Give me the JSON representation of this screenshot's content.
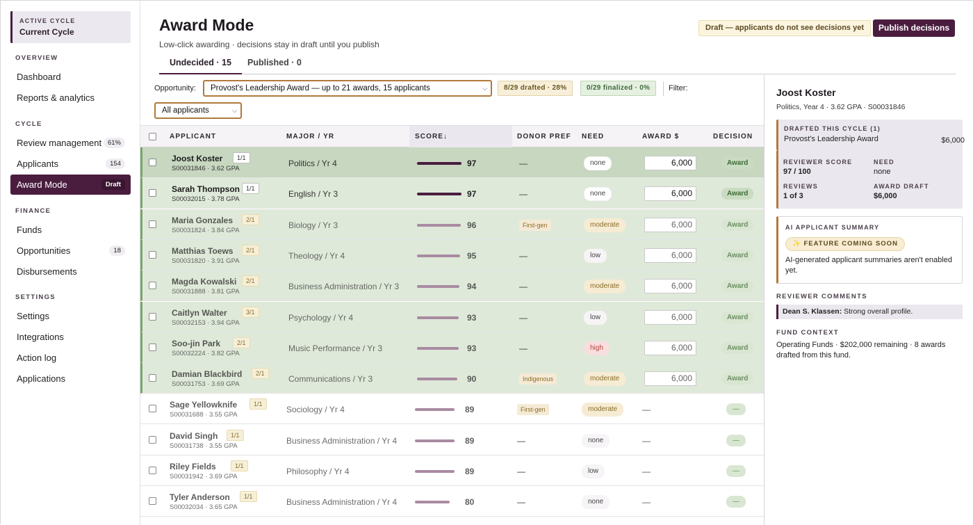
{
  "sidebar": {
    "cycle_kicker": "ACTIVE CYCLE",
    "cycle_name": "Current Cycle",
    "sections": {
      "overview": "OVERVIEW",
      "cycle": "CYCLE",
      "finance": "FINANCE",
      "settings": "SETTINGS"
    },
    "items": {
      "dashboard": "Dashboard",
      "reports": "Reports & analytics",
      "review": "Review management",
      "review_badge": "61%",
      "applicants": "Applicants",
      "applicants_badge": "154",
      "award_mode": "Award Mode",
      "award_mode_badge": "Draft",
      "funds": "Funds",
      "opportunities": "Opportunities",
      "opportunities_badge": "18",
      "disbursements": "Disbursements",
      "settings": "Settings",
      "integrations": "Integrations",
      "action_log": "Action log",
      "applications": "Applications"
    }
  },
  "header": {
    "title": "Award Mode",
    "subtitle": "Low-click awarding · decisions stay in draft until you publish",
    "draft_note": "Draft — applicants do not see decisions yet",
    "publish_label": "Publish decisions"
  },
  "tabs": {
    "undecided": "Undecided · 15",
    "published": "Published · 0"
  },
  "filters": {
    "opportunity_label": "Opportunity:",
    "opportunity_value": "Provost's Leadership Award — up to 21 awards, 15 applicants",
    "drafted_chip": "8/29 drafted · 28%",
    "finalized_chip": "0/29 finalized · 0%",
    "filter_label": "Filter:",
    "applicants_filter": "All applicants"
  },
  "columns": {
    "applicant": "APPLICANT",
    "major": "MAJOR / YR",
    "score": "SCORE↓",
    "donor": "DONOR PREF",
    "need": "NEED",
    "award": "AWARD $",
    "decision": "DECISION"
  },
  "rows": [
    {
      "name": "Joost Koster",
      "seq": "1/1",
      "sid": "S00031846 · 3.62 GPA",
      "major": "Politics / Yr 4",
      "score": "97",
      "score_value": 97,
      "donor": "—",
      "tag": "",
      "need": "none",
      "award": "6,000",
      "decision": "Award",
      "state": "selected"
    },
    {
      "name": "Sarah Thompson",
      "seq": "1/1",
      "sid": "S00032015 · 3.78 GPA",
      "major": "English / Yr 3",
      "score": "97",
      "score_value": 97,
      "donor": "—",
      "tag": "",
      "need": "none",
      "award": "6,000",
      "decision": "Award",
      "state": "drafted"
    },
    {
      "name": "Maria Gonzales",
      "seq": "2/1",
      "sid": "S00031824 · 3.84 GPA",
      "major": "Biology / Yr 3",
      "score": "96",
      "score_value": 96,
      "donor": "",
      "tag": "First-gen",
      "need": "moderate",
      "award": "6,000",
      "decision": "Award",
      "state": "drafted-fade"
    },
    {
      "name": "Matthias Toews",
      "seq": "2/1",
      "sid": "S00031820 · 3.91 GPA",
      "major": "Theology / Yr 4",
      "score": "95",
      "score_value": 95,
      "donor": "—",
      "tag": "",
      "need": "low",
      "award": "6,000",
      "decision": "Award",
      "state": "drafted-fade"
    },
    {
      "name": "Magda Kowalski",
      "seq": "2/1",
      "sid": "S00031888 · 3.81 GPA",
      "major": "Business Administration / Yr 3",
      "score": "94",
      "score_value": 94,
      "donor": "—",
      "tag": "",
      "need": "moderate",
      "award": "6,000",
      "decision": "Award",
      "state": "drafted-fade"
    },
    {
      "name": "Caitlyn Walter",
      "seq": "3/1",
      "sid": "S00032153 · 3.94 GPA",
      "major": "Psychology / Yr 4",
      "score": "93",
      "score_value": 93,
      "donor": "—",
      "tag": "",
      "need": "low",
      "award": "6,000",
      "decision": "Award",
      "state": "drafted-fade"
    },
    {
      "name": "Soo-jin Park",
      "seq": "2/1",
      "sid": "S00032224 · 3.82 GPA",
      "major": "Music Performance / Yr 3",
      "score": "93",
      "score_value": 93,
      "donor": "—",
      "tag": "",
      "need": "high",
      "award": "6,000",
      "decision": "Award",
      "state": "drafted-fade"
    },
    {
      "name": "Damian Blackbird",
      "seq": "2/1",
      "sid": "S00031753 · 3.69 GPA",
      "major": "Communications / Yr 3",
      "score": "90",
      "score_value": 90,
      "donor": "",
      "tag": "Indigenous",
      "need": "moderate",
      "award": "6,000",
      "decision": "Award",
      "state": "drafted-fade"
    },
    {
      "name": "Sage Yellowknife",
      "seq": "1/1",
      "sid": "S00031688 · 3.55 GPA",
      "major": "Sociology / Yr 4",
      "score": "89",
      "score_value": 89,
      "donor": "",
      "tag": "First-gen",
      "need": "moderate",
      "award": "—",
      "decision": "—",
      "state": "fade"
    },
    {
      "name": "David Singh",
      "seq": "1/1",
      "sid": "S00031738 · 3.55 GPA",
      "major": "Business Administration / Yr 4",
      "score": "89",
      "score_value": 89,
      "donor": "—",
      "tag": "",
      "need": "none",
      "award": "—",
      "decision": "—",
      "state": "fade"
    },
    {
      "name": "Riley Fields",
      "seq": "1/1",
      "sid": "S00031942 · 3.69 GPA",
      "major": "Philosophy / Yr 4",
      "score": "89",
      "score_value": 89,
      "donor": "—",
      "tag": "",
      "need": "low",
      "award": "—",
      "decision": "—",
      "state": "fade"
    },
    {
      "name": "Tyler Anderson",
      "seq": "1/1",
      "sid": "S00032034 · 3.65 GPA",
      "major": "Business Administration / Yr 4",
      "score": "80",
      "score_value": 80,
      "donor": "—",
      "tag": "",
      "need": "none",
      "award": "—",
      "decision": "—",
      "state": "fade"
    }
  ],
  "panel": {
    "name": "Joost Koster",
    "sub": "Politics, Year 4 · 3.62 GPA · S00031846",
    "drafted_kicker": "DRAFTED THIS CYCLE (1)",
    "drafted_award": "Provost's Leadership Award",
    "drafted_amount": "$6,000",
    "reviewer_score_k": "REVIEWER SCORE",
    "reviewer_score_v": "97 / 100",
    "need_k": "NEED",
    "need_v": "none",
    "reviews_k": "REVIEWS",
    "reviews_v": "1 of 3",
    "award_draft_k": "AWARD DRAFT",
    "award_draft_v": "$6,000",
    "ai_kicker": "AI APPLICANT SUMMARY",
    "ai_soon": "✨ FEATURE COMING SOON",
    "ai_text": "AI-generated applicant summaries aren't enabled yet.",
    "comments_kicker": "REVIEWER COMMENTS",
    "comment_author": "Dean S. Klassen:",
    "comment_text": "Strong overall profile.",
    "fund_kicker": "FUND CONTEXT",
    "fund_text": "Operating Funds · $202,000 remaining · 8 awards drafted from this fund."
  }
}
